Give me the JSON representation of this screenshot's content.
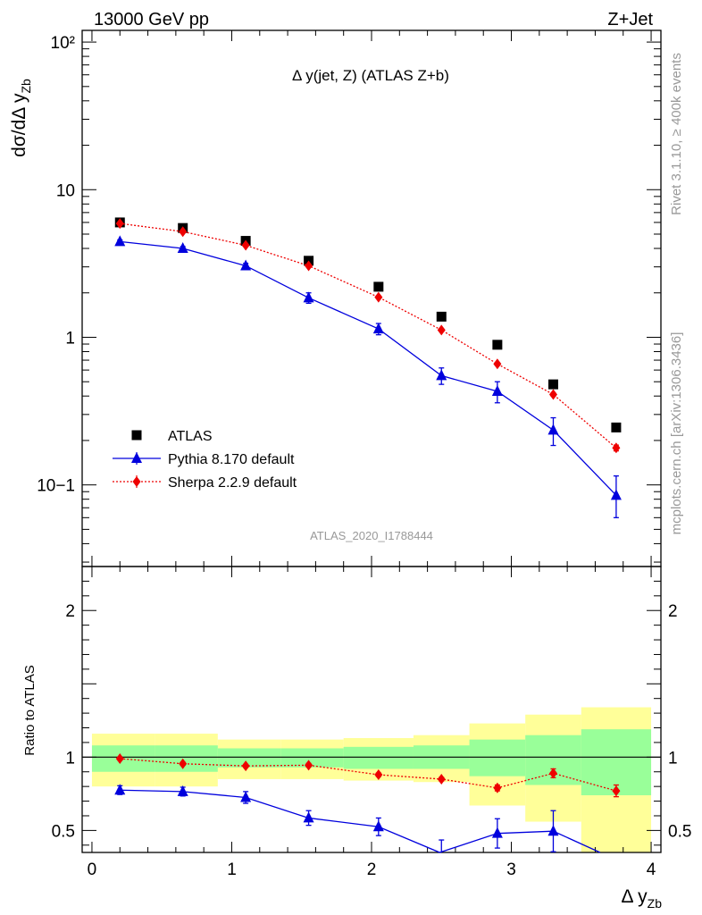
{
  "header": {
    "left_label": "13000 GeV pp",
    "right_label": "Z+Jet"
  },
  "side_labels": {
    "rivet": "Rivet 3.1.10, ≥ 400k events",
    "mcplots": "mcplots.cern.ch [arXiv:1306.3436]"
  },
  "chart_data": {
    "type": "scatter",
    "title": "Δ y(jet, Z) (ATLAS Z+b)",
    "analysis_id": "ATLAS_2020_I1788444",
    "xlabel": "Δ y",
    "xlabel_sub": "Zb",
    "ylabel": "dσ/dΔ y",
    "ylabel_sub": "Zb",
    "ratio_ylabel": "Ratio to ATLAS",
    "xlim": [
      -0.07,
      4.07
    ],
    "ylim": [
      0.028,
      120
    ],
    "ylog": true,
    "ratio_ylim": [
      0.35,
      2.3
    ],
    "x_ticks": [
      "0",
      "1",
      "2",
      "3",
      "4"
    ],
    "y_ticks": [
      "10−1",
      "1",
      "10",
      "10²"
    ],
    "ratio_ticks": [
      "0.5",
      "1",
      "2"
    ],
    "legend_position": "bottom-left",
    "bins": [
      0.0,
      0.45,
      0.9,
      1.35,
      1.8,
      2.3,
      2.7,
      3.1,
      3.5,
      4.0
    ],
    "x": [
      0.2,
      0.65,
      1.1,
      1.55,
      2.05,
      2.5,
      2.9,
      3.3,
      3.75
    ],
    "series": [
      {
        "name": "ATLAS",
        "color": "#000000",
        "marker": "square",
        "values": [
          6.0,
          5.5,
          4.5,
          3.3,
          2.2,
          1.38,
          0.89,
          0.48,
          0.245
        ]
      },
      {
        "name": "Pythia 8.170 default",
        "color": "#0000dd",
        "marker": "triangle",
        "line": "solid",
        "values": [
          4.45,
          4.0,
          3.05,
          1.85,
          1.14,
          0.55,
          0.43,
          0.235,
          0.085
        ],
        "err_low": [
          0.12,
          0.12,
          0.12,
          0.15,
          0.1,
          0.07,
          0.07,
          0.05,
          0.025
        ],
        "err_high": [
          0.12,
          0.12,
          0.12,
          0.15,
          0.1,
          0.07,
          0.07,
          0.05,
          0.03
        ],
        "ratio": [
          0.775,
          0.765,
          0.725,
          0.585,
          0.525,
          0.345,
          0.48,
          0.495,
          0.3
        ],
        "ratio_err": [
          0.03,
          0.03,
          0.04,
          0.05,
          0.06,
          0.09,
          0.1,
          0.14,
          0.0
        ]
      },
      {
        "name": "Sherpa 2.2.9 default",
        "color": "#ee0000",
        "marker": "diamond",
        "line": "dotted",
        "values": [
          5.9,
          5.2,
          4.2,
          3.05,
          1.87,
          1.12,
          0.66,
          0.41,
          0.178
        ],
        "err_low": [
          0.05,
          0.05,
          0.04,
          0.04,
          0.03,
          0.02,
          0.015,
          0.01,
          0.008
        ],
        "err_high": [
          0.05,
          0.05,
          0.04,
          0.04,
          0.03,
          0.02,
          0.015,
          0.01,
          0.008
        ],
        "ratio": [
          0.99,
          0.955,
          0.94,
          0.945,
          0.88,
          0.85,
          0.79,
          0.89,
          0.77
        ],
        "ratio_err": [
          0.01,
          0.01,
          0.01,
          0.012,
          0.012,
          0.012,
          0.02,
          0.03,
          0.04
        ]
      }
    ],
    "bands": {
      "yellow": {
        "color": "#ffff99",
        "low": [
          0.8,
          0.8,
          0.85,
          0.85,
          0.84,
          0.83,
          0.67,
          0.56,
          0.3
        ],
        "high": [
          1.16,
          1.16,
          1.12,
          1.12,
          1.13,
          1.15,
          1.23,
          1.29,
          1.34
        ]
      },
      "green": {
        "color": "#99ff99",
        "low": [
          0.9,
          0.9,
          0.93,
          0.93,
          0.92,
          0.92,
          0.87,
          0.81,
          0.74
        ],
        "high": [
          1.08,
          1.08,
          1.06,
          1.06,
          1.07,
          1.08,
          1.12,
          1.15,
          1.19
        ]
      }
    }
  }
}
